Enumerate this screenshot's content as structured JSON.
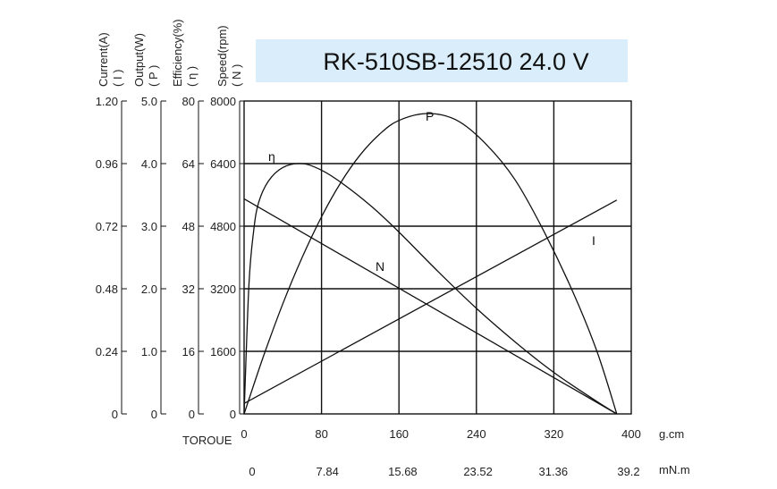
{
  "chart_data": {
    "type": "line",
    "title": "RK-510SB-12510  24.0 V",
    "x_primary": {
      "label": "TOROUE",
      "unit": "g.cm",
      "ticks": [
        "0",
        "80",
        "160",
        "240",
        "320",
        "400"
      ],
      "range": [
        0,
        400
      ]
    },
    "x_secondary": {
      "unit": "mN.m",
      "ticks": [
        "0",
        "7.84",
        "15.68",
        "23.52",
        "31.36",
        "39.2"
      ]
    },
    "y_axes": [
      {
        "id": "current",
        "label_top": "Current(A)",
        "label_sub": "( I )",
        "range": [
          0,
          1.2
        ],
        "ticks": [
          "0",
          "0.24",
          "0.48",
          "0.72",
          "0.96",
          "1.20"
        ]
      },
      {
        "id": "output",
        "label_top": "Output(W)",
        "label_sub": "( P )",
        "range": [
          0,
          5
        ],
        "ticks": [
          "0",
          "1.0",
          "2.0",
          "3.0",
          "4.0",
          "5.0"
        ]
      },
      {
        "id": "efficiency",
        "label_top": "Efficiency(%)",
        "label_sub": "( η )",
        "range": [
          0,
          80
        ],
        "ticks": [
          "0",
          "16",
          "32",
          "48",
          "64",
          "80"
        ]
      },
      {
        "id": "speed",
        "label_top": "Speed(rpm)",
        "label_sub": "( N )",
        "range": [
          0,
          8000
        ],
        "ticks": [
          "0",
          "1600",
          "3200",
          "4800",
          "6400",
          "8000"
        ]
      }
    ],
    "series": [
      {
        "name": "N",
        "axis": "speed",
        "points": [
          [
            0,
            5500
          ],
          [
            385,
            0
          ]
        ]
      },
      {
        "name": "I",
        "axis": "current",
        "points": [
          [
            0,
            0.04
          ],
          [
            385,
            0.82
          ]
        ]
      },
      {
        "name": "P",
        "axis": "output",
        "points": [
          [
            0,
            0
          ],
          [
            20,
            0.92
          ],
          [
            40,
            1.76
          ],
          [
            60,
            2.5
          ],
          [
            80,
            3.15
          ],
          [
            100,
            3.7
          ],
          [
            120,
            4.14
          ],
          [
            140,
            4.47
          ],
          [
            160,
            4.69
          ],
          [
            190,
            4.8
          ],
          [
            220,
            4.69
          ],
          [
            250,
            4.31
          ],
          [
            280,
            3.74
          ],
          [
            310,
            2.91
          ],
          [
            340,
            1.94
          ],
          [
            365,
            0.98
          ],
          [
            385,
            0
          ]
        ]
      },
      {
        "name": "η",
        "axis": "efficiency",
        "points": [
          [
            0,
            0
          ],
          [
            5,
            33
          ],
          [
            10,
            47
          ],
          [
            15,
            54
          ],
          [
            25,
            59.5
          ],
          [
            40,
            63
          ],
          [
            60,
            64
          ],
          [
            80,
            62.3
          ],
          [
            100,
            59.2
          ],
          [
            130,
            53.4
          ],
          [
            160,
            46.5
          ],
          [
            200,
            36.5
          ],
          [
            240,
            27
          ],
          [
            280,
            18.4
          ],
          [
            320,
            10.6
          ],
          [
            360,
            3.9
          ],
          [
            385,
            0
          ]
        ]
      }
    ]
  }
}
